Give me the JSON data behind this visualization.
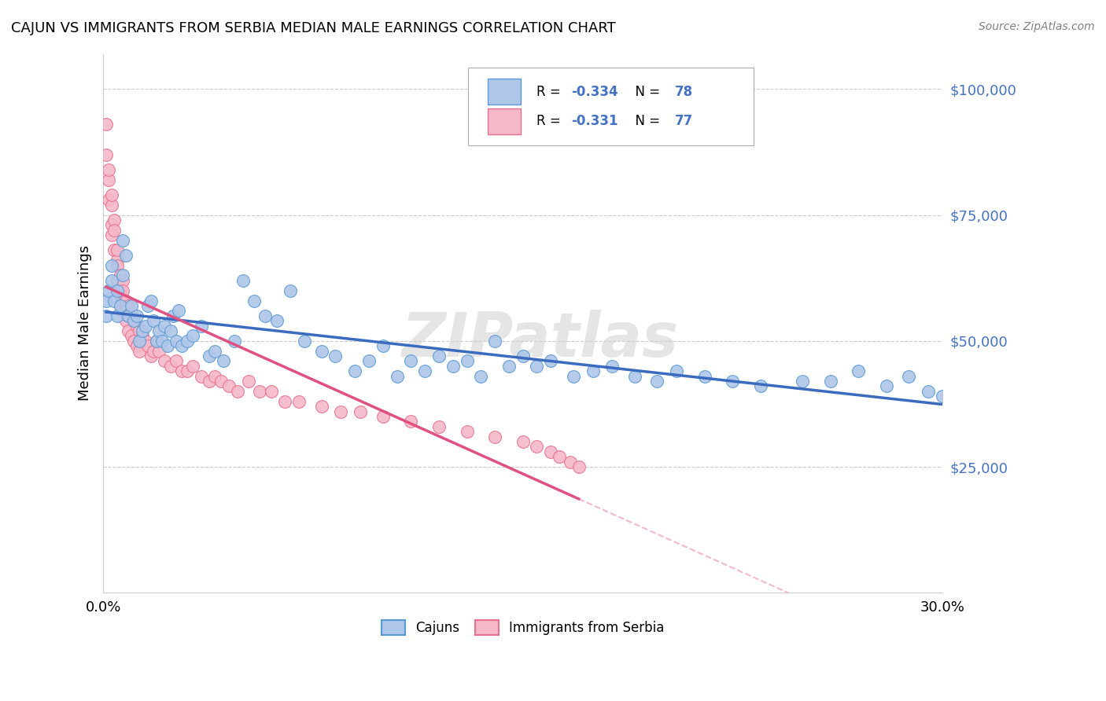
{
  "title": "CAJUN VS IMMIGRANTS FROM SERBIA MEDIAN MALE EARNINGS CORRELATION CHART",
  "source": "Source: ZipAtlas.com",
  "ylabel": "Median Male Earnings",
  "xmin": 0.0,
  "xmax": 0.3,
  "ymin": 0,
  "ymax": 107000,
  "cajun_color": "#aec6e8",
  "cajun_edge_color": "#5b9bd5",
  "serbia_color": "#f4b8c8",
  "serbia_edge_color": "#e8718e",
  "trend_cajun_color": "#3a6bbf",
  "trend_serbia_color": "#e05080",
  "ytick_color": "#4472c4",
  "watermark": "ZIPatlas",
  "cajun_x": [
    0.001,
    0.001,
    0.002,
    0.003,
    0.003,
    0.004,
    0.005,
    0.005,
    0.006,
    0.007,
    0.007,
    0.008,
    0.009,
    0.01,
    0.011,
    0.012,
    0.013,
    0.014,
    0.015,
    0.016,
    0.017,
    0.018,
    0.019,
    0.02,
    0.021,
    0.022,
    0.023,
    0.024,
    0.025,
    0.026,
    0.027,
    0.028,
    0.03,
    0.032,
    0.035,
    0.038,
    0.04,
    0.043,
    0.047,
    0.05,
    0.054,
    0.058,
    0.062,
    0.067,
    0.072,
    0.078,
    0.083,
    0.09,
    0.095,
    0.1,
    0.105,
    0.11,
    0.115,
    0.12,
    0.125,
    0.13,
    0.135,
    0.14,
    0.145,
    0.15,
    0.155,
    0.16,
    0.168,
    0.175,
    0.182,
    0.19,
    0.198,
    0.205,
    0.215,
    0.225,
    0.235,
    0.25,
    0.26,
    0.27,
    0.28,
    0.288,
    0.295,
    0.3
  ],
  "cajun_y": [
    55000,
    58000,
    60000,
    65000,
    62000,
    58000,
    55000,
    60000,
    57000,
    70000,
    63000,
    67000,
    55000,
    57000,
    54000,
    55000,
    50000,
    52000,
    53000,
    57000,
    58000,
    54000,
    50000,
    52000,
    50000,
    53000,
    49000,
    52000,
    55000,
    50000,
    56000,
    49000,
    50000,
    51000,
    53000,
    47000,
    48000,
    46000,
    50000,
    62000,
    58000,
    55000,
    54000,
    60000,
    50000,
    48000,
    47000,
    44000,
    46000,
    49000,
    43000,
    46000,
    44000,
    47000,
    45000,
    46000,
    43000,
    50000,
    45000,
    47000,
    45000,
    46000,
    43000,
    44000,
    45000,
    43000,
    42000,
    44000,
    43000,
    42000,
    41000,
    42000,
    42000,
    44000,
    41000,
    43000,
    40000,
    39000
  ],
  "serbia_x": [
    0.001,
    0.001,
    0.002,
    0.002,
    0.002,
    0.003,
    0.003,
    0.003,
    0.003,
    0.004,
    0.004,
    0.004,
    0.005,
    0.005,
    0.005,
    0.005,
    0.006,
    0.006,
    0.006,
    0.006,
    0.007,
    0.007,
    0.007,
    0.007,
    0.008,
    0.008,
    0.008,
    0.009,
    0.009,
    0.009,
    0.01,
    0.01,
    0.011,
    0.011,
    0.012,
    0.012,
    0.013,
    0.013,
    0.014,
    0.014,
    0.015,
    0.016,
    0.017,
    0.018,
    0.019,
    0.02,
    0.022,
    0.024,
    0.026,
    0.028,
    0.03,
    0.032,
    0.035,
    0.038,
    0.04,
    0.042,
    0.045,
    0.048,
    0.052,
    0.056,
    0.06,
    0.065,
    0.07,
    0.078,
    0.085,
    0.092,
    0.1,
    0.11,
    0.12,
    0.13,
    0.14,
    0.15,
    0.155,
    0.16,
    0.163,
    0.167,
    0.17
  ],
  "serbia_y": [
    93000,
    87000,
    82000,
    78000,
    84000,
    77000,
    73000,
    79000,
    71000,
    74000,
    68000,
    72000,
    66000,
    62000,
    68000,
    65000,
    63000,
    60000,
    59000,
    57000,
    62000,
    58000,
    56000,
    60000,
    56000,
    54000,
    58000,
    55000,
    52000,
    57000,
    55000,
    51000,
    54000,
    50000,
    53000,
    49000,
    52000,
    48000,
    51000,
    50000,
    50000,
    49000,
    47000,
    48000,
    50000,
    48000,
    46000,
    45000,
    46000,
    44000,
    44000,
    45000,
    43000,
    42000,
    43000,
    42000,
    41000,
    40000,
    42000,
    40000,
    40000,
    38000,
    38000,
    37000,
    36000,
    36000,
    35000,
    34000,
    33000,
    32000,
    31000,
    30000,
    29000,
    28000,
    27000,
    26000,
    25000
  ]
}
